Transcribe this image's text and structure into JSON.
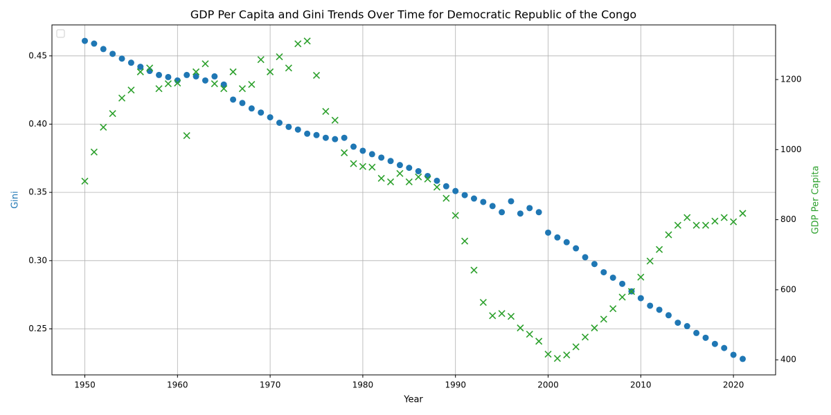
{
  "chart_data": {
    "type": "scatter",
    "title": "GDP Per Capita and Gini Trends Over Time for Democratic Republic of the Congo",
    "x_label": "Year",
    "y_label": "Gini",
    "y2_label": "GDP Per Capita",
    "y_label_color": "#1f77b4",
    "y2_label_color": "#2ca02c",
    "x": [
      1950,
      1951,
      1952,
      1953,
      1954,
      1955,
      1956,
      1957,
      1958,
      1959,
      1960,
      1961,
      1962,
      1963,
      1964,
      1965,
      1966,
      1967,
      1968,
      1969,
      1970,
      1971,
      1972,
      1973,
      1974,
      1975,
      1976,
      1977,
      1978,
      1979,
      1980,
      1981,
      1982,
      1983,
      1984,
      1985,
      1986,
      1987,
      1988,
      1989,
      1990,
      1991,
      1992,
      1993,
      1994,
      1995,
      1996,
      1997,
      1998,
      1999,
      2000,
      2001,
      2002,
      2003,
      2004,
      2005,
      2006,
      2007,
      2008,
      2009,
      2010,
      2011,
      2012,
      2013,
      2014,
      2015,
      2016,
      2017,
      2018,
      2019,
      2020,
      2021
    ],
    "series": [
      {
        "color": "#1f77b4",
        "marker": "o",
        "values": [
          0.461,
          0.459,
          0.455,
          0.4515,
          0.448,
          0.445,
          0.442,
          0.439,
          0.436,
          0.4345,
          0.432,
          0.436,
          0.435,
          0.432,
          0.435,
          0.429,
          0.418,
          0.4155,
          0.4115,
          0.4085,
          0.405,
          0.401,
          0.398,
          0.396,
          0.393,
          0.392,
          0.39,
          0.389,
          0.39,
          0.3835,
          0.3805,
          0.378,
          0.3755,
          0.373,
          0.37,
          0.368,
          0.3655,
          0.362,
          0.3585,
          0.3545,
          0.351,
          0.348,
          0.3455,
          0.343,
          0.34,
          0.3355,
          0.3435,
          0.3345,
          0.3385,
          0.3355,
          0.3205,
          0.317,
          0.3135,
          0.309,
          0.3025,
          0.2975,
          0.2915,
          0.2875,
          0.283,
          0.2775,
          0.2725,
          0.267,
          0.264,
          0.26,
          0.2545,
          0.252,
          0.247,
          0.2435,
          0.239,
          0.236,
          0.231,
          0.228
        ]
      },
      {
        "color": "#2ca02c",
        "marker": "x",
        "axis": "y2",
        "values": [
          910,
          993,
          1064,
          1103,
          1147,
          1170,
          1222,
          1233,
          1174,
          1188,
          1190,
          1040,
          1222,
          1245,
          1188,
          1174,
          1222,
          1174,
          1186,
          1257,
          1222,
          1265,
          1233,
          1302,
          1310,
          1212,
          1109,
          1084,
          991,
          960,
          952,
          950,
          918,
          908,
          932,
          908,
          922,
          916,
          893,
          861,
          812,
          739,
          656,
          564,
          526,
          532,
          524,
          491,
          473,
          453,
          416,
          404,
          414,
          437,
          465,
          491,
          516,
          546,
          579,
          595,
          636,
          682,
          715,
          757,
          784,
          806,
          784,
          784,
          796,
          806,
          794,
          818
        ]
      }
    ],
    "xlim": [
      1946.45,
      2024.55
    ],
    "xticks": [
      1950,
      1960,
      1970,
      1980,
      1990,
      2000,
      2010,
      2020
    ],
    "ylim": [
      0.2163,
      0.4727
    ],
    "yticks": [
      0.25,
      {
        "value": 0.3,
        "label": "0.30"
      },
      0.35,
      {
        "value": 0.4,
        "label": "0.40"
      },
      0.45
    ],
    "y2lim": [
      357,
      1356
    ],
    "y2ticks": [
      400,
      600,
      800,
      1000,
      1200
    ],
    "grid": true
  }
}
